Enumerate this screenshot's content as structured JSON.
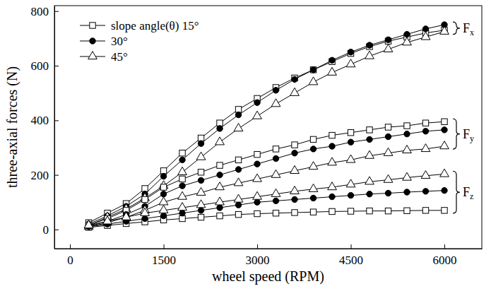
{
  "chart_data": {
    "type": "line",
    "x_label": "wheel speed (RPM)",
    "y_label": "three-axial forces (N)",
    "x": [
      300,
      600,
      900,
      1200,
      1500,
      1800,
      2100,
      2400,
      2700,
      3000,
      3300,
      3600,
      3900,
      4200,
      4500,
      4800,
      5100,
      5400,
      5700,
      6000
    ],
    "xlim": [
      -250,
      6600
    ],
    "xticks": [
      0,
      1500,
      3000,
      4500,
      6000
    ],
    "ylim": [
      -70,
      820
    ],
    "yticks": [
      0,
      200,
      400,
      600,
      800
    ],
    "legend": "top-left",
    "grid": false,
    "series": [
      {
        "name": "slope angle(θ) 15°",
        "group": "Fx",
        "color": "#000000",
        "marker": "square-open",
        "values": [
          25,
          60,
          95,
          150,
          215,
          280,
          335,
          390,
          440,
          480,
          520,
          555,
          585,
          615,
          645,
          670,
          690,
          705,
          720,
          730
        ]
      },
      {
        "name": "30°",
        "group": "Fx",
        "color": "#000000",
        "marker": "circle-filled",
        "values": [
          20,
          50,
          85,
          130,
          195,
          255,
          315,
          370,
          420,
          465,
          510,
          550,
          585,
          620,
          650,
          675,
          695,
          715,
          735,
          750
        ]
      },
      {
        "name": "45°",
        "group": "Fx",
        "color": "#000000",
        "marker": "triangle-open",
        "values": [
          15,
          45,
          75,
          115,
          160,
          210,
          265,
          320,
          370,
          415,
          460,
          500,
          540,
          575,
          605,
          635,
          660,
          685,
          705,
          725
        ]
      },
      {
        "name": "slope angle(θ) 15°",
        "group": "Fy",
        "color": "#000000",
        "marker": "square-open",
        "values": [
          15,
          40,
          70,
          110,
          155,
          185,
          210,
          235,
          255,
          275,
          295,
          310,
          330,
          345,
          355,
          365,
          375,
          380,
          390,
          395
        ]
      },
      {
        "name": "30°",
        "group": "Fy",
        "color": "#000000",
        "marker": "circle-filled",
        "values": [
          12,
          30,
          55,
          85,
          130,
          160,
          180,
          200,
          220,
          240,
          260,
          280,
          295,
          305,
          320,
          330,
          340,
          350,
          360,
          365
        ]
      },
      {
        "name": "45°",
        "group": "Fy",
        "color": "#000000",
        "marker": "triangle-open",
        "values": [
          10,
          25,
          45,
          70,
          100,
          120,
          135,
          155,
          170,
          185,
          200,
          215,
          230,
          245,
          255,
          270,
          280,
          290,
          295,
          305
        ]
      },
      {
        "name": "slope angle(θ) 15°",
        "group": "Fz",
        "color": "#000000",
        "marker": "square-open",
        "values": [
          8,
          15,
          22,
          28,
          35,
          40,
          45,
          50,
          55,
          58,
          60,
          62,
          64,
          66,
          67,
          68,
          68,
          69,
          70,
          70
        ]
      },
      {
        "name": "30°",
        "group": "Fz",
        "color": "#000000",
        "marker": "circle-filled",
        "values": [
          10,
          20,
          30,
          40,
          50,
          60,
          70,
          80,
          90,
          100,
          105,
          110,
          115,
          120,
          125,
          130,
          133,
          137,
          140,
          143
        ]
      },
      {
        "name": "45°",
        "group": "Fz",
        "color": "#000000",
        "marker": "triangle-open",
        "values": [
          15,
          30,
          45,
          60,
          70,
          80,
          90,
          100,
          110,
          120,
          130,
          140,
          148,
          155,
          165,
          175,
          182,
          190,
          197,
          203
        ]
      }
    ]
  }
}
